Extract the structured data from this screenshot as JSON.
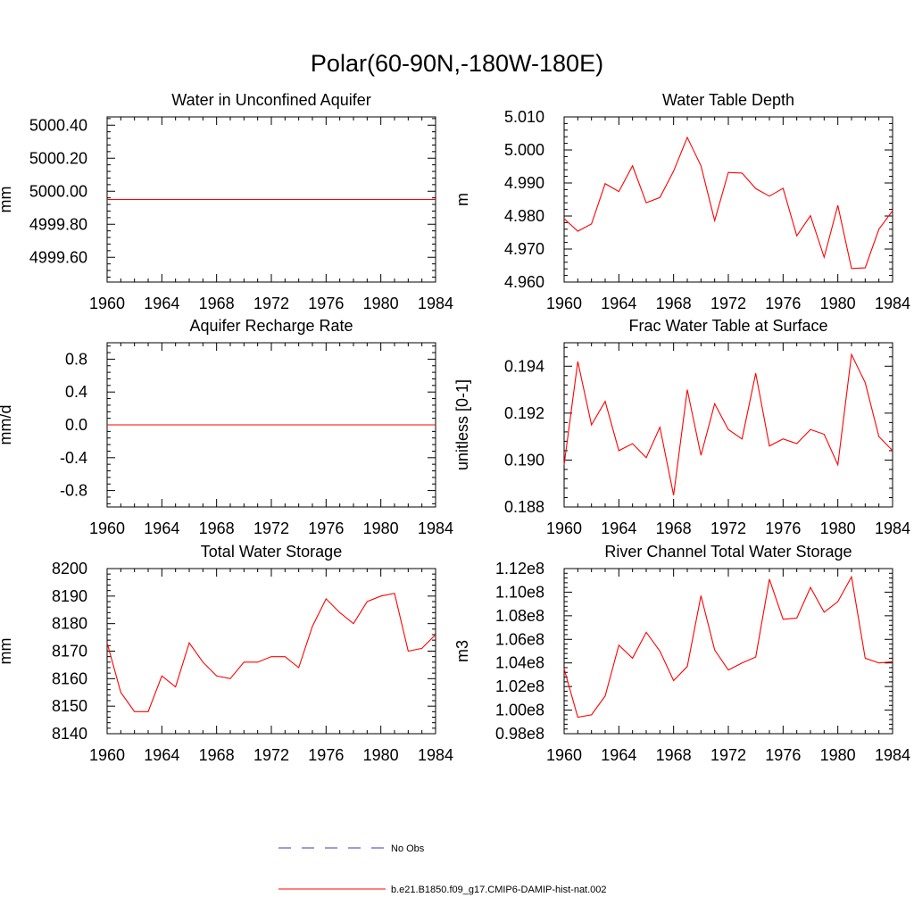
{
  "title": "Polar(60-90N,-180W-180E)",
  "colors": {
    "model": "#ff0000",
    "obs": "#3b3bb3",
    "axis": "#000000"
  },
  "legend": {
    "obs_label": "No Obs",
    "model_label": "b.e21.B1850.f09_g17.CMIP6-DAMIP-hist-nat.002"
  },
  "chart_data": [
    {
      "type": "line",
      "title": "Water in Unconfined Aquifer",
      "xlabel": "",
      "ylabel": "mm",
      "xlim": [
        1960,
        1984
      ],
      "ylim": [
        4999.45,
        5000.45
      ],
      "xticks": [
        "1960",
        "1964",
        "1968",
        "1972",
        "1976",
        "1980",
        "1984"
      ],
      "yticks": [
        "4999.60",
        "4999.80",
        "5000.00",
        "5000.20",
        "5000.40"
      ],
      "x": [
        1960,
        1961,
        1962,
        1963,
        1964,
        1965,
        1966,
        1967,
        1968,
        1969,
        1970,
        1971,
        1972,
        1973,
        1974,
        1975,
        1976,
        1977,
        1978,
        1979,
        1980,
        1981,
        1982,
        1983,
        1984
      ],
      "series": [
        {
          "values": [
            4999.95,
            4999.95,
            4999.95,
            4999.95,
            4999.95,
            4999.95,
            4999.95,
            4999.95,
            4999.95,
            4999.95,
            4999.95,
            4999.95,
            4999.95,
            4999.95,
            4999.95,
            4999.95,
            4999.95,
            4999.95,
            4999.95,
            4999.95,
            4999.95,
            4999.95,
            4999.95,
            4999.95,
            4999.95
          ]
        }
      ]
    },
    {
      "type": "line",
      "title": "Water Table Depth",
      "xlabel": "",
      "ylabel": "m",
      "xlim": [
        1960,
        1984
      ],
      "ylim": [
        4.96,
        5.01
      ],
      "xticks": [
        "1960",
        "1964",
        "1968",
        "1972",
        "1976",
        "1980",
        "1984"
      ],
      "yticks": [
        "4.960",
        "4.970",
        "4.980",
        "4.990",
        "5.000",
        "5.010"
      ],
      "x": [
        1960,
        1961,
        1962,
        1963,
        1964,
        1965,
        1966,
        1967,
        1968,
        1969,
        1970,
        1971,
        1972,
        1973,
        1974,
        1975,
        1976,
        1977,
        1978,
        1979,
        1980,
        1981,
        1982,
        1983,
        1984
      ],
      "series": [
        {
          "values": [
            4.9792,
            4.9754,
            4.9776,
            4.9898,
            4.9874,
            4.9952,
            4.984,
            4.9856,
            4.9936,
            5.0038,
            4.9952,
            4.9786,
            4.9932,
            4.993,
            4.9883,
            4.986,
            4.9884,
            4.974,
            4.9801,
            4.9675,
            4.9832,
            4.9641,
            4.9643,
            4.976,
            4.9816
          ]
        }
      ]
    },
    {
      "type": "line",
      "title": "Aquifer Recharge Rate",
      "xlabel": "",
      "ylabel": "mm/d",
      "xlim": [
        1960,
        1984
      ],
      "ylim": [
        -1.0,
        1.0
      ],
      "xticks": [
        "1960",
        "1964",
        "1968",
        "1972",
        "1976",
        "1980",
        "1984"
      ],
      "yticks": [
        "-0.8",
        "-0.4",
        "0.0",
        "0.4",
        "0.8"
      ],
      "x": [
        1960,
        1961,
        1962,
        1963,
        1964,
        1965,
        1966,
        1967,
        1968,
        1969,
        1970,
        1971,
        1972,
        1973,
        1974,
        1975,
        1976,
        1977,
        1978,
        1979,
        1980,
        1981,
        1982,
        1983,
        1984
      ],
      "series": [
        {
          "values": [
            0,
            0,
            0,
            0,
            0,
            0,
            0,
            0,
            0,
            0,
            0,
            0,
            0,
            0,
            0,
            0,
            0,
            0,
            0,
            0,
            0,
            0,
            0,
            0,
            0
          ]
        }
      ]
    },
    {
      "type": "line",
      "title": "Frac Water Table at Surface",
      "xlabel": "",
      "ylabel": "unitless [0-1]",
      "xlim": [
        1960,
        1984
      ],
      "ylim": [
        0.188,
        0.195
      ],
      "xticks": [
        "1960",
        "1964",
        "1968",
        "1972",
        "1976",
        "1980",
        "1984"
      ],
      "yticks": [
        "0.188",
        "0.190",
        "0.192",
        "0.194"
      ],
      "x": [
        1960,
        1961,
        1962,
        1963,
        1964,
        1965,
        1966,
        1967,
        1968,
        1969,
        1970,
        1971,
        1972,
        1973,
        1974,
        1975,
        1976,
        1977,
        1978,
        1979,
        1980,
        1981,
        1982,
        1983,
        1984
      ],
      "series": [
        {
          "values": [
            0.1898,
            0.1942,
            0.1915,
            0.1925,
            0.1904,
            0.1907,
            0.1901,
            0.1914,
            0.1885,
            0.193,
            0.1902,
            0.1924,
            0.1913,
            0.1909,
            0.1937,
            0.1906,
            0.1909,
            0.1907,
            0.1913,
            0.1911,
            0.1898,
            0.1945,
            0.1933,
            0.191,
            0.1904
          ]
        }
      ]
    },
    {
      "type": "line",
      "title": "Total Water Storage",
      "xlabel": "",
      "ylabel": "mm",
      "xlim": [
        1960,
        1984
      ],
      "ylim": [
        8140,
        8200
      ],
      "xticks": [
        "1960",
        "1964",
        "1968",
        "1972",
        "1976",
        "1980",
        "1984"
      ],
      "yticks": [
        "8140",
        "8150",
        "8160",
        "8170",
        "8180",
        "8190",
        "8200"
      ],
      "x": [
        1960,
        1961,
        1962,
        1963,
        1964,
        1965,
        1966,
        1967,
        1968,
        1969,
        1970,
        1971,
        1972,
        1973,
        1974,
        1975,
        1976,
        1977,
        1978,
        1979,
        1980,
        1981,
        1982,
        1983,
        1984
      ],
      "series": [
        {
          "values": [
            8173,
            8155,
            8148,
            8148,
            8161,
            8157,
            8173,
            8166,
            8161,
            8160,
            8166,
            8166,
            8168,
            8168,
            8164,
            8179,
            8189,
            8184,
            8180,
            8188,
            8190,
            8191,
            8170,
            8171,
            8176
          ]
        }
      ]
    },
    {
      "type": "line",
      "title": "River Channel Total Water Storage",
      "xlabel": "",
      "ylabel": "m3",
      "xlim": [
        1960,
        1984
      ],
      "ylim": [
        98000000.0,
        112000000.0
      ],
      "xticks": [
        "1960",
        "1964",
        "1968",
        "1972",
        "1976",
        "1980",
        "1984"
      ],
      "yticks": [
        "0.98e8",
        "1.00e8",
        "1.02e8",
        "1.04e8",
        "1.06e8",
        "1.08e8",
        "1.10e8",
        "1.12e8"
      ],
      "x": [
        1960,
        1961,
        1962,
        1963,
        1964,
        1965,
        1966,
        1967,
        1968,
        1969,
        1970,
        1971,
        1972,
        1973,
        1974,
        1975,
        1976,
        1977,
        1978,
        1979,
        1980,
        1981,
        1982,
        1983,
        1984
      ],
      "series": [
        {
          "values": [
            103500000.0,
            99400000.0,
            99600000.0,
            101200000.0,
            105500000.0,
            104400000.0,
            106600000.0,
            105000000.0,
            102500000.0,
            103700000.0,
            109700000.0,
            105100000.0,
            103400000.0,
            104000000.0,
            104500000.0,
            111100000.0,
            107700000.0,
            107800000.0,
            110400000.0,
            108300000.0,
            109200000.0,
            111300000.0,
            104400000.0,
            104000000.0,
            104100000.0
          ]
        }
      ]
    }
  ]
}
